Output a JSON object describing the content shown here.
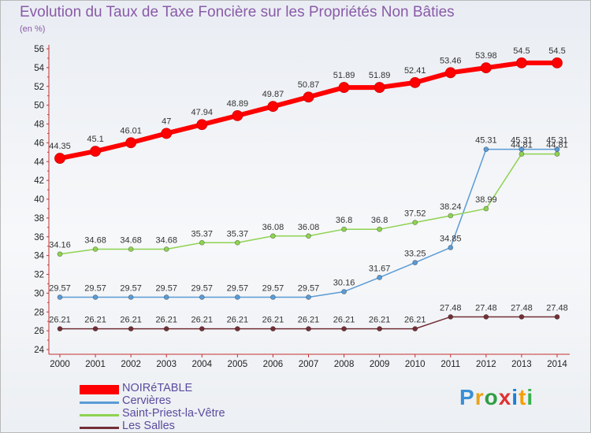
{
  "title": "Evolution du Taux de Taxe Foncière sur les Propriétés Non Bâties",
  "subtitle": "(en %)",
  "logo": "Proxiti",
  "chart_data": {
    "type": "line",
    "title": "Evolution du Taux de Taxe Foncière sur les Propriétés Non Bâties",
    "ylabel": "(en %)",
    "xlabel": "",
    "x": [
      2000,
      2001,
      2002,
      2003,
      2004,
      2005,
      2006,
      2007,
      2008,
      2009,
      2010,
      2011,
      2012,
      2013,
      2014
    ],
    "ylim": [
      24,
      56
    ],
    "y_ticks": [
      24,
      26,
      28,
      30,
      32,
      34,
      36,
      38,
      40,
      42,
      44,
      46,
      48,
      50,
      52,
      54,
      56
    ],
    "grid": false,
    "legend_position": "bottom-left",
    "series": [
      {
        "name": "NOIRéTABLE",
        "color": "#ff0000",
        "values": [
          44.35,
          45.1,
          46.01,
          47,
          47.94,
          48.89,
          49.87,
          50.87,
          51.89,
          51.89,
          52.41,
          53.46,
          53.98,
          54.5,
          54.5
        ]
      },
      {
        "name": "Cervières",
        "color": "#5b9bd5",
        "values": [
          29.57,
          29.57,
          29.57,
          29.57,
          29.57,
          29.57,
          29.57,
          29.57,
          30.16,
          31.67,
          33.25,
          34.85,
          45.31,
          45.31,
          45.31
        ]
      },
      {
        "name": "Saint-Priest-la-Vêtre",
        "color": "#8ed351",
        "values": [
          34.16,
          34.68,
          34.68,
          34.68,
          35.37,
          35.37,
          36.08,
          36.08,
          36.8,
          36.8,
          37.52,
          38.24,
          38.99,
          44.81,
          44.81
        ]
      },
      {
        "name": "Les Salles",
        "color": "#722f37",
        "values": [
          26.21,
          26.21,
          26.21,
          26.21,
          26.21,
          26.21,
          26.21,
          26.21,
          26.21,
          26.21,
          26.21,
          27.48,
          27.48,
          27.48,
          27.48
        ]
      }
    ]
  }
}
